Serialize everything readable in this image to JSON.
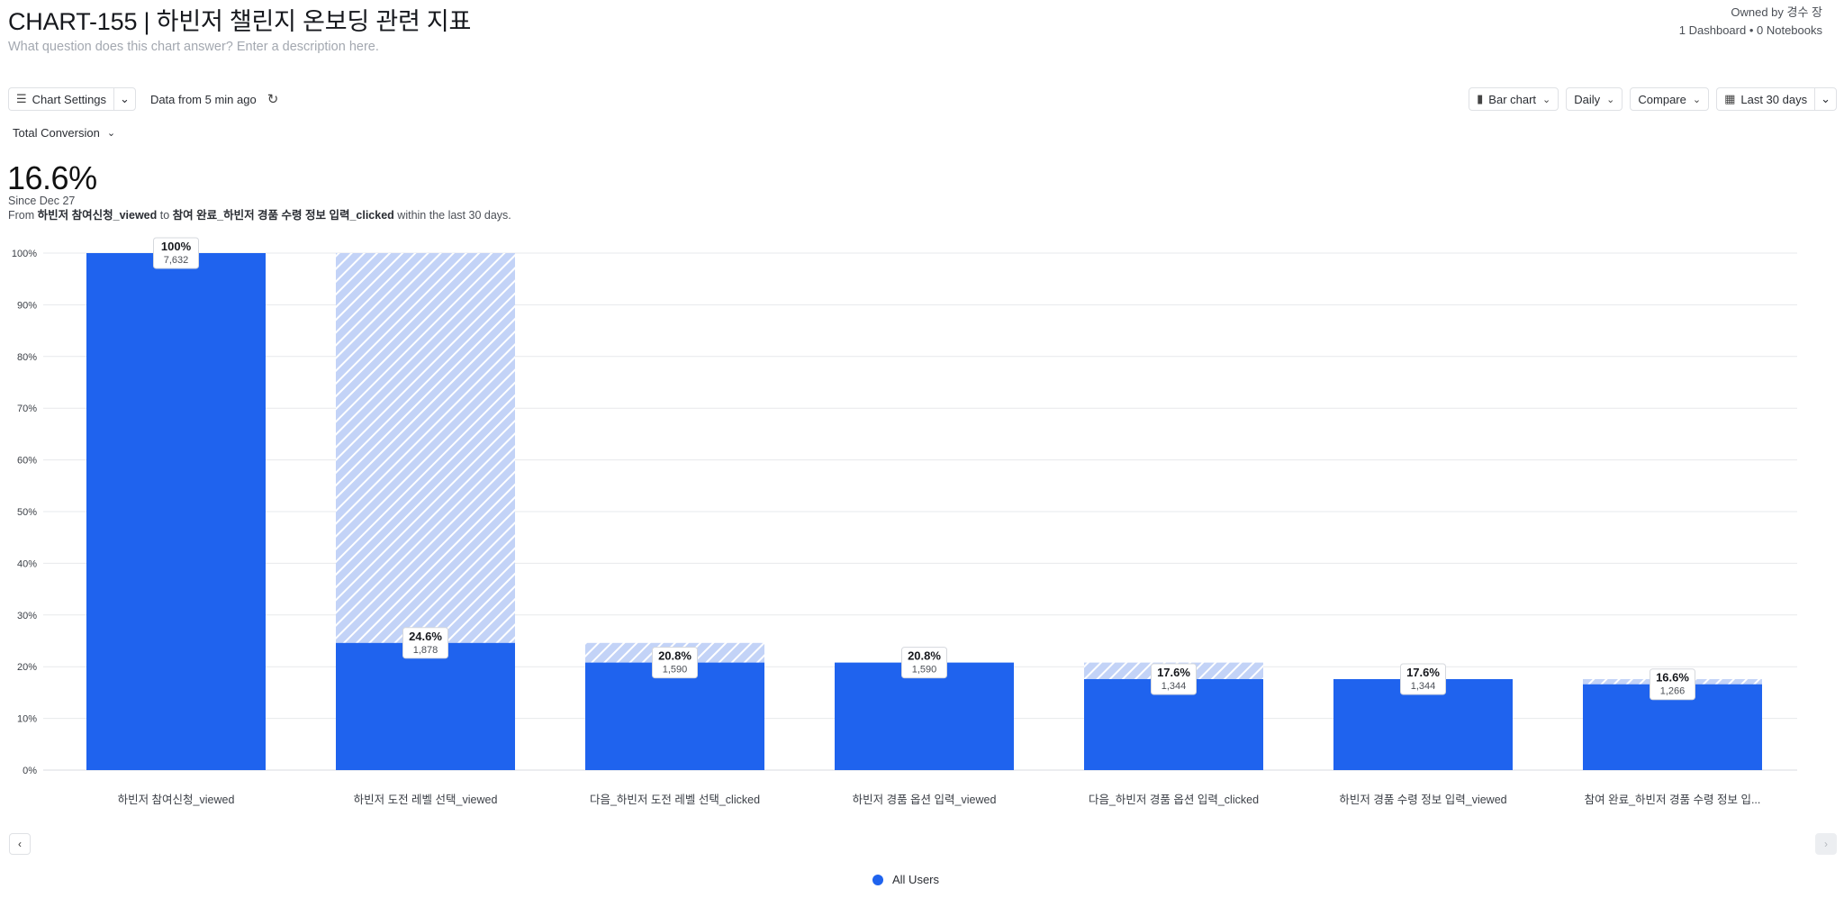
{
  "header": {
    "title": "CHART-155 | 하빈저 챌린지 온보딩 관련 지표",
    "description_placeholder": "What question does this chart answer? Enter a description here.",
    "owner": "Owned by 경수 장",
    "usage": "1 Dashboard • 0 Notebooks"
  },
  "toolbar": {
    "chart_settings": "Chart Settings",
    "data_freshness": "Data from 5 min ago",
    "chart_type": "Bar chart",
    "interval": "Daily",
    "compare": "Compare",
    "date_range": "Last 30 days"
  },
  "metric": {
    "selector": "Total Conversion",
    "value": "16.6%",
    "since": "Since Dec 27",
    "from_prefix": "From ",
    "from_event": "하빈저 참여신청_viewed",
    "to_word": " to ",
    "to_event": "참여 완료_하빈저 경품 수령 정보 입력_clicked",
    "suffix": " within the last 30 days."
  },
  "chart_data": {
    "type": "bar",
    "title": "",
    "xlabel": "",
    "ylabel": "",
    "ylim": [
      0,
      100
    ],
    "y_ticks": [
      "0%",
      "10%",
      "20%",
      "30%",
      "40%",
      "50%",
      "60%",
      "70%",
      "80%",
      "90%",
      "100%"
    ],
    "grid": true,
    "legend_position": "bottom",
    "categories": [
      "하빈저 참여신청_viewed",
      "하빈저 도전 레벨 선택_viewed",
      "다음_하빈저 도전 레벨 선택_clicked",
      "하빈저 경품 옵션 입력_viewed",
      "다음_하빈저 경품 옵션 입력_clicked",
      "하빈저 경품 수령 정보 입력_viewed",
      "참여 완료_하빈저 경품 수령 정보 입..."
    ],
    "series": [
      {
        "name": "All Users",
        "color": "#1f63ee",
        "values": [
          100,
          24.6,
          20.8,
          20.8,
          17.6,
          17.6,
          16.6
        ],
        "labels": [
          "100%",
          "24.6%",
          "20.8%",
          "20.8%",
          "17.6%",
          "17.6%",
          "16.6%"
        ],
        "counts": [
          "7,632",
          "1,878",
          "1,590",
          "1,590",
          "1,344",
          "1,344",
          "1,266"
        ]
      }
    ],
    "dropoff_color": "#c3d3f7"
  },
  "legend": {
    "label": "All Users",
    "color": "#1f63ee"
  },
  "icons": {
    "chart_settings": "sliders-icon",
    "refresh": "refresh-icon",
    "bar_chart": "bar-chart-icon",
    "calendar": "calendar-icon",
    "prev": "chevron-left-icon",
    "next": "chevron-right-icon"
  }
}
